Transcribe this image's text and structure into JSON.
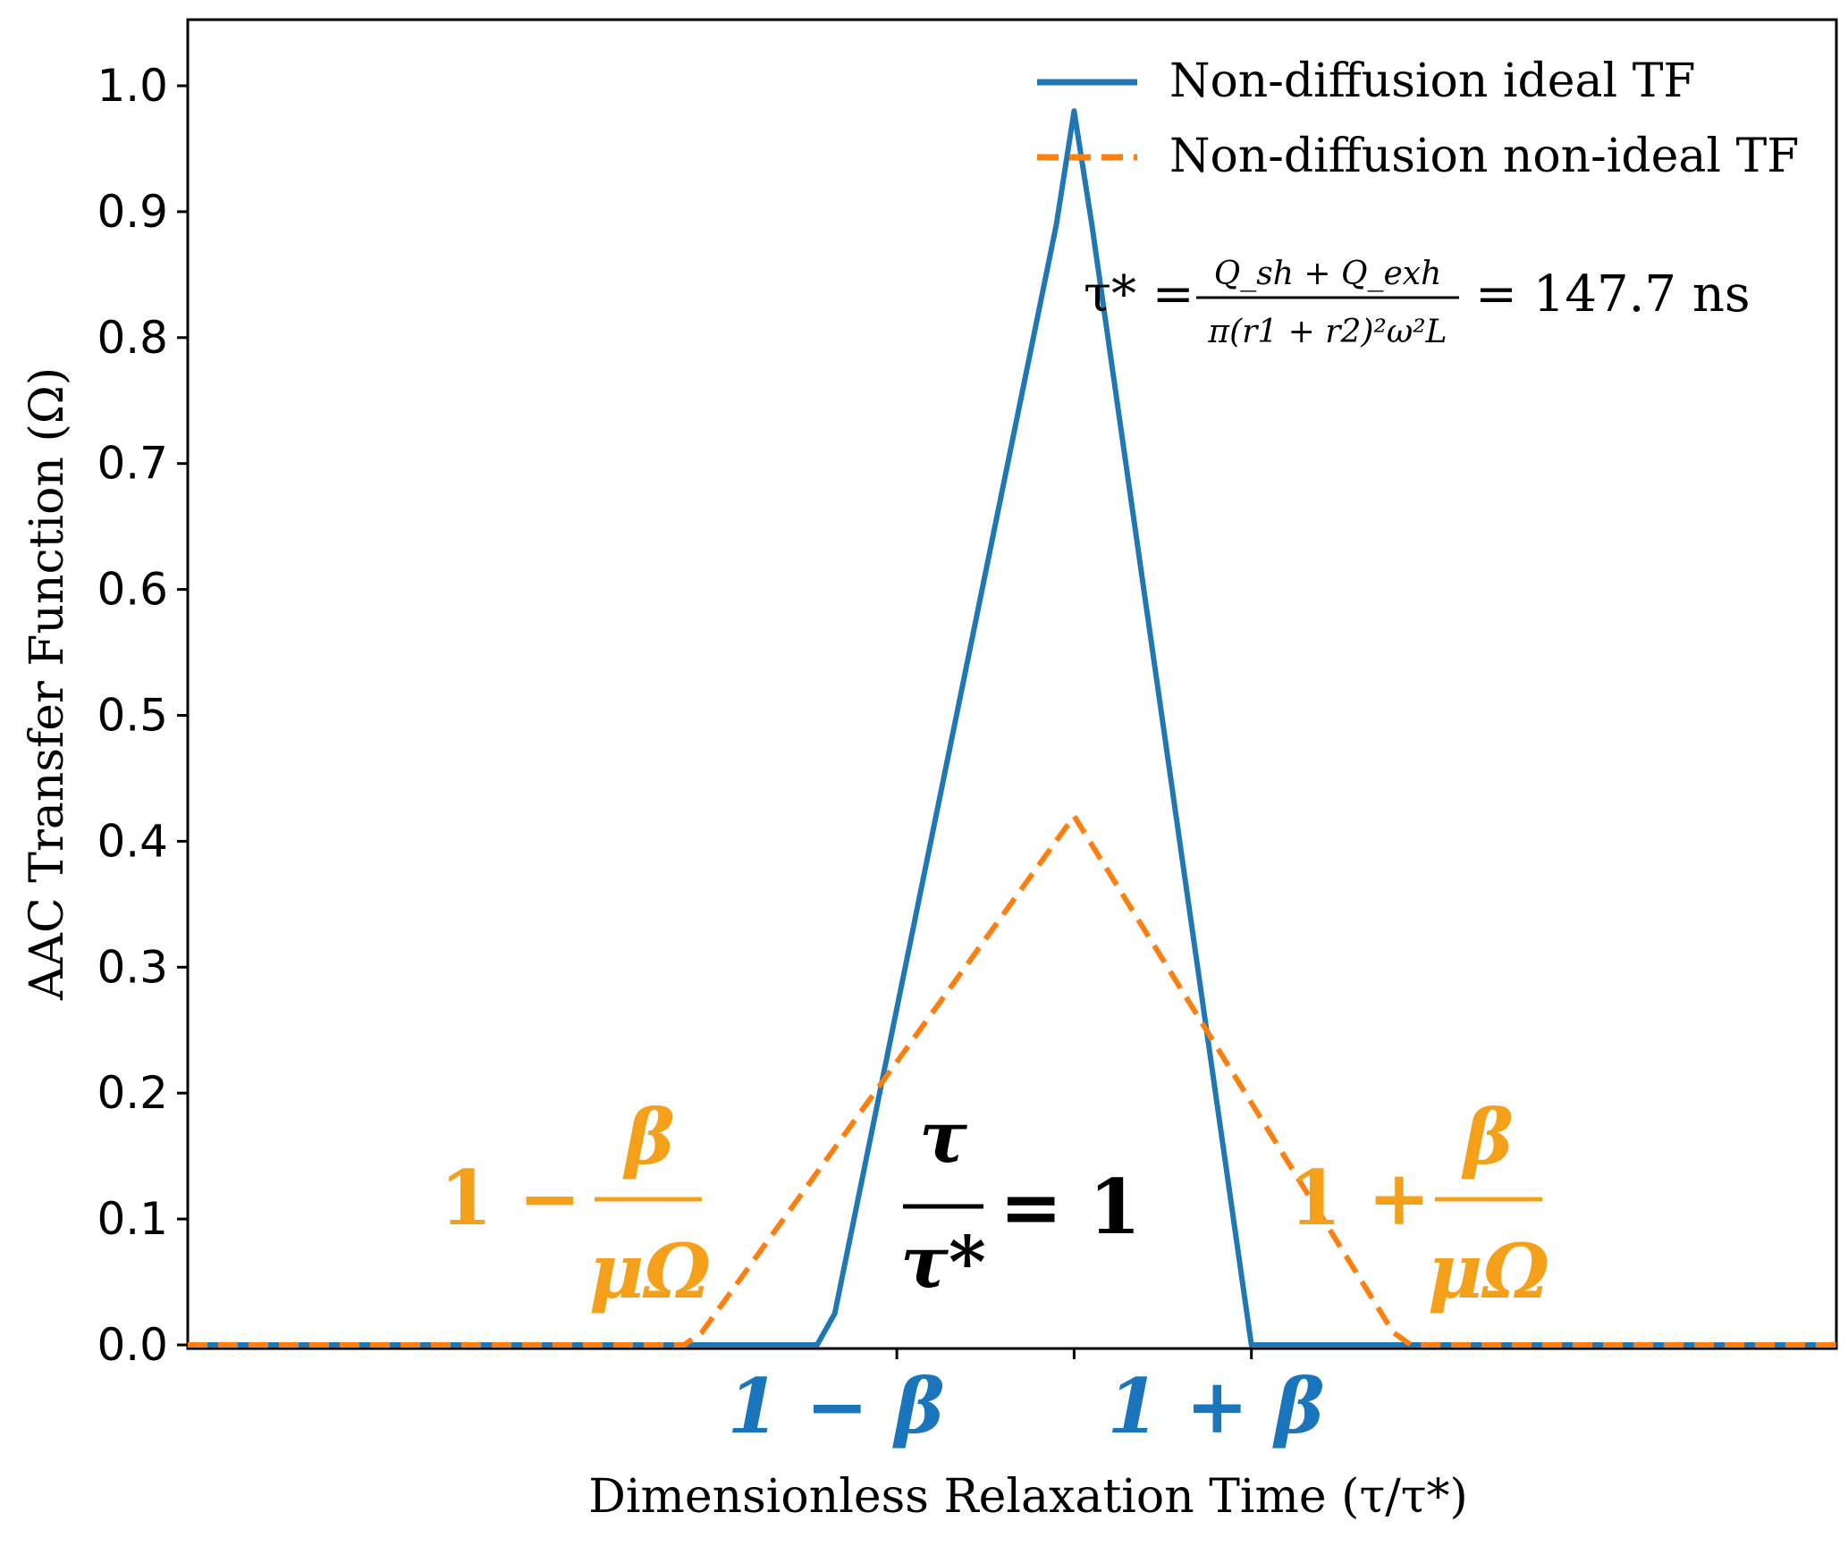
{
  "chart_data": {
    "type": "line",
    "title": "",
    "xlabel": "Dimensionless Relaxation Time (τ/τ*)",
    "ylabel": "AAC Transfer Function (Ω)",
    "ylim": [
      0,
      1.05
    ],
    "xlim": [
      0,
      1.86
    ],
    "y_ticks": [
      "0.0",
      "0.1",
      "0.2",
      "0.3",
      "0.4",
      "0.5",
      "0.6",
      "0.7",
      "0.8",
      "0.9",
      "1.0"
    ],
    "x_tick_positions": [
      0.8,
      1.0,
      1.2
    ],
    "grid": false,
    "legend_position": "top-right",
    "series": [
      {
        "name": "Non-diffusion ideal TF",
        "color": "#1f77b4",
        "dash": "solid",
        "x": [
          0.0,
          0.71,
          0.73,
          0.98,
          1.0,
          1.02,
          1.2,
          1.86
        ],
        "y": [
          0.0,
          0.0,
          0.025,
          0.89,
          0.98,
          0.89,
          0.0,
          0.0
        ]
      },
      {
        "name": "Non-diffusion non-ideal TF",
        "color": "#ff7f0e",
        "dash": "dashed",
        "x": [
          0.0,
          0.56,
          0.58,
          1.0,
          1.36,
          1.38,
          1.86
        ],
        "y": [
          0.0,
          0.0,
          0.01,
          0.42,
          0.01,
          0.0,
          0.0
        ]
      }
    ],
    "annotations": {
      "formula": {
        "lhs": "τ* =",
        "numerator": "Q_sh + Q_exh",
        "denominator": "π(r1 + r2)²ω²L",
        "rhs": "= 147.7 ns"
      },
      "center": {
        "numerator": "τ",
        "denominator": "τ*",
        "rhs": "= 1"
      },
      "left_orange": {
        "prefix": "1 −",
        "numerator": "β",
        "denominator": "μΩ"
      },
      "right_orange": {
        "prefix": "1 +",
        "numerator": "β",
        "denominator": "μΩ"
      },
      "left_blue": "1 − β",
      "right_blue": "1 + β"
    }
  },
  "colors": {
    "annotation_orange": "#f5a01a",
    "annotation_blue": "#1b75bc"
  }
}
